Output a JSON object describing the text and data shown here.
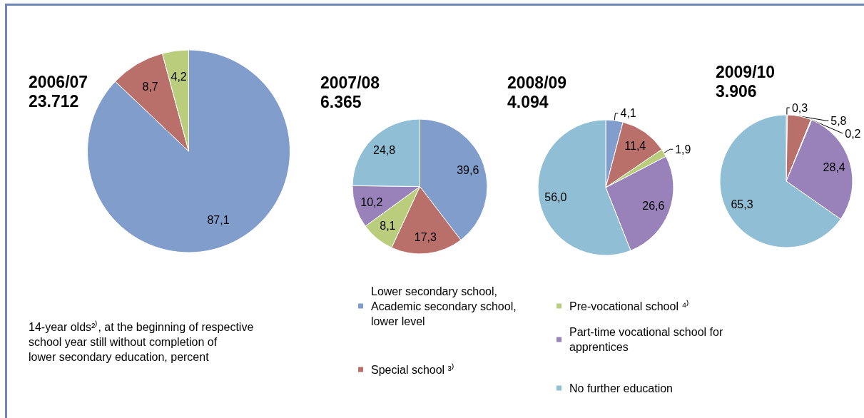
{
  "chart_data": [
    {
      "type": "pie",
      "title": "2006/07",
      "subtitle": "23.712",
      "categories": [
        null,
        null,
        null
      ],
      "values": [
        87.1,
        8.7,
        4.2
      ],
      "colors": [
        "#809dcc",
        "#b9706b",
        "#b9cd7d"
      ],
      "value_labels": [
        "87,1",
        "8,7",
        "4,2"
      ],
      "annotations": [
        "14-year olds²⁾, at the beginning of respective\nschool year still without completion of\nlower secondary education, percent"
      ]
    },
    {
      "type": "pie",
      "title": "2007/08",
      "subtitle": "6.365",
      "categories": [
        "Lower secondary school, Academic secondary school, lower level",
        "Special school ³⁾",
        "Pre-vocational school ⁴⁾",
        "Part-time vocational school for apprentices",
        "No further education"
      ],
      "values": [
        39.6,
        17.3,
        8.1,
        10.2,
        24.8
      ],
      "colors": [
        "#809dcc",
        "#b9706b",
        "#b9cd7d",
        "#9882b9",
        "#8fbed5"
      ],
      "value_labels": [
        "39,6",
        "17,3",
        "8,1",
        "10,2",
        "24,8"
      ],
      "legend": "bottom"
    },
    {
      "type": "pie",
      "title": "2008/09",
      "subtitle": "4.094",
      "categories": [
        null,
        null,
        null,
        null,
        null
      ],
      "values": [
        4.1,
        11.4,
        1.9,
        26.6,
        56.0
      ],
      "colors": [
        "#809dcc",
        "#b9706b",
        "#b9cd7d",
        "#9882b9",
        "#8fbed5"
      ],
      "value_labels": [
        "4,1",
        "11,4",
        "1,9",
        "26,6",
        "56,0"
      ]
    },
    {
      "type": "pie",
      "title": "2009/10",
      "subtitle": "3.906",
      "categories": [
        null,
        null,
        null,
        null,
        null
      ],
      "values": [
        0.3,
        5.8,
        0.2,
        28.4,
        65.3
      ],
      "colors": [
        "#809dcc",
        "#b9706b",
        "#b9cd7d",
        "#9882b9",
        "#8fbed5"
      ],
      "value_labels": [
        "0,3",
        "5,8",
        "0,2",
        "28,4",
        "65,3"
      ]
    }
  ]
}
